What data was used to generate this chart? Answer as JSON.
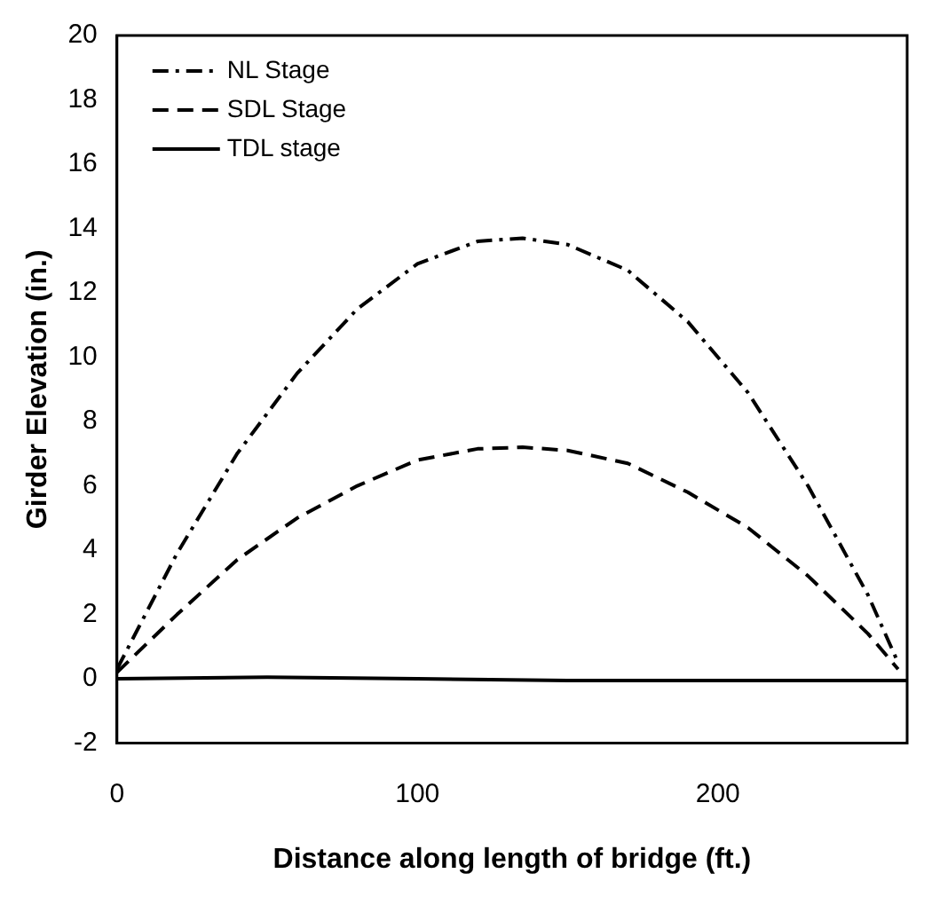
{
  "chart_data": {
    "type": "line",
    "xlabel": "Distance along length of bridge (ft.)",
    "ylabel": "Girder Elevation (in.)",
    "xlim": [
      0,
      263
    ],
    "xticks": [
      0,
      100,
      200
    ],
    "ylim": [
      -2,
      20
    ],
    "yticks": [
      -2,
      0,
      2,
      4,
      6,
      8,
      10,
      12,
      14,
      16,
      18,
      20
    ],
    "grid": false,
    "legend": "top left",
    "marker": "none",
    "series": [
      {
        "name": "NL Stage",
        "color": "#000000",
        "line_style": "dashdot",
        "x": [
          0,
          20,
          40,
          60,
          80,
          100,
          120,
          135,
          150,
          170,
          190,
          210,
          230,
          250,
          260
        ],
        "values": [
          0.3,
          3.9,
          7.0,
          9.5,
          11.5,
          12.9,
          13.6,
          13.7,
          13.5,
          12.7,
          11.1,
          8.9,
          6.0,
          2.6,
          0.5
        ]
      },
      {
        "name": "SDL Stage",
        "color": "#000000",
        "line_style": "dashed",
        "x": [
          0,
          20,
          40,
          60,
          80,
          100,
          120,
          135,
          150,
          170,
          190,
          210,
          230,
          250,
          260
        ],
        "values": [
          0.2,
          2.0,
          3.7,
          5.0,
          6.0,
          6.8,
          7.15,
          7.2,
          7.1,
          6.7,
          5.8,
          4.7,
          3.2,
          1.4,
          0.3
        ]
      },
      {
        "name": "TDL stage",
        "color": "#000000",
        "line_style": "solid",
        "x": [
          0,
          50,
          100,
          150,
          200,
          263
        ],
        "values": [
          0,
          0.05,
          0,
          -0.05,
          -0.05,
          -0.05
        ]
      }
    ]
  }
}
